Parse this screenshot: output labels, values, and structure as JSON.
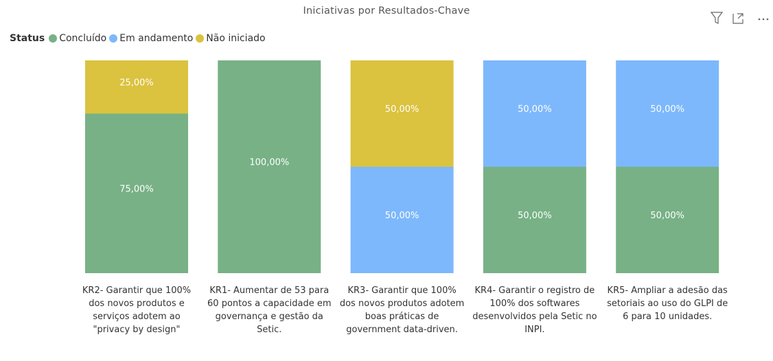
{
  "chart_data": {
    "type": "stacked-bar-percent",
    "title": "Iniciativas por Resultados-Chave",
    "legend_title": "Status",
    "legend": "top-left",
    "categories": [
      "KR2- Garantir que 100% dos novos produtos e serviços adotem ao \"privacy by design\"",
      "KR1- Aumentar de 53 para 60 pontos a capacidade em governança e gestão da Setic.",
      "KR3- Garantir que 100% dos novos produtos adotem boas práticas de government data-driven.",
      "KR4- Garantir o registro de 100% dos softwares desenvolvidos pela Setic no INPI.",
      "KR5- Ampliar a adesão das setoriais ao uso do GLPI de 6 para 10 unidades."
    ],
    "series": [
      {
        "name": "Concluído",
        "color": "#77b185",
        "values": [
          75,
          100,
          0,
          50,
          50
        ],
        "value_labels": [
          "75,00%",
          "100,00%",
          null,
          "50,00%",
          "50,00%"
        ]
      },
      {
        "name": "Em andamento",
        "color": "#7db8fc",
        "values": [
          0,
          0,
          50,
          50,
          50
        ],
        "value_labels": [
          null,
          null,
          "50,00%",
          "50,00%",
          "50,00%"
        ]
      },
      {
        "name": "Não iniciado",
        "color": "#dbc23f",
        "values": [
          25,
          0,
          50,
          0,
          0
        ],
        "value_labels": [
          "25,00%",
          null,
          "50,00%",
          null,
          null
        ]
      }
    ]
  }
}
